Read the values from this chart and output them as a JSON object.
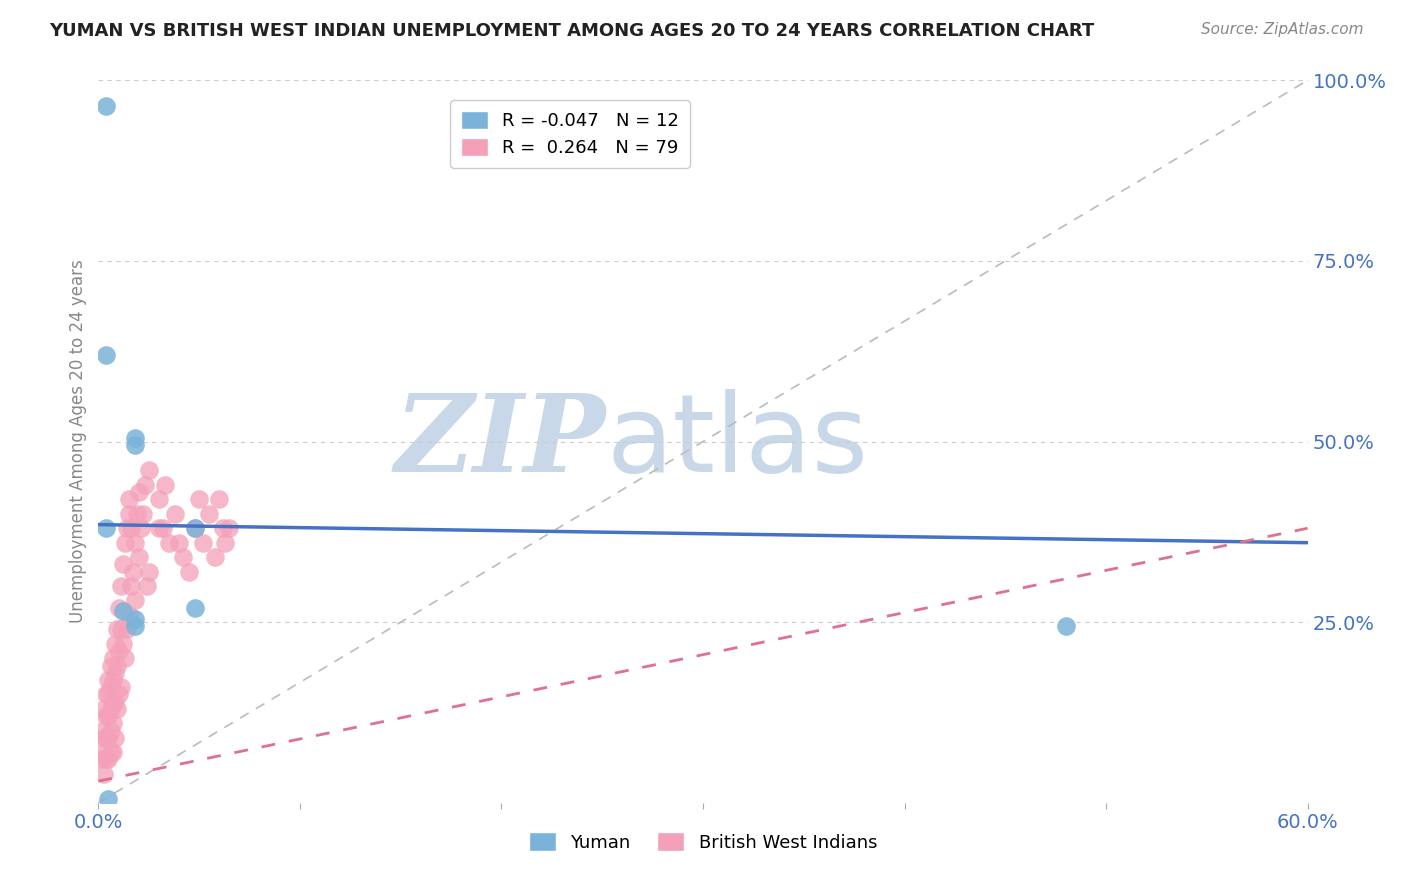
{
  "title": "YUMAN VS BRITISH WEST INDIAN UNEMPLOYMENT AMONG AGES 20 TO 24 YEARS CORRELATION CHART",
  "source": "Source: ZipAtlas.com",
  "ylabel": "Unemployment Among Ages 20 to 24 years",
  "xlim": [
    0.0,
    0.6
  ],
  "ylim": [
    0.0,
    1.0
  ],
  "xticks": [
    0.0,
    0.1,
    0.2,
    0.3,
    0.4,
    0.5,
    0.6
  ],
  "ytick_positions": [
    0.0,
    0.25,
    0.5,
    0.75,
    1.0
  ],
  "ytick_labels": [
    "",
    "25.0%",
    "50.0%",
    "75.0%",
    "100.0%"
  ],
  "legend_r_yuman": "-0.047",
  "legend_n_yuman": "12",
  "legend_r_bwi": "0.264",
  "legend_n_bwi": "79",
  "yuman_color": "#7ab3d9",
  "bwi_color": "#f4a0b8",
  "yuman_x": [
    0.004,
    0.004,
    0.004,
    0.012,
    0.018,
    0.018,
    0.018,
    0.018,
    0.048,
    0.048,
    0.48,
    0.005
  ],
  "yuman_y": [
    0.965,
    0.62,
    0.38,
    0.265,
    0.505,
    0.495,
    0.255,
    0.245,
    0.38,
    0.27,
    0.245,
    0.005
  ],
  "bwi_x": [
    0.002,
    0.002,
    0.003,
    0.003,
    0.003,
    0.003,
    0.004,
    0.004,
    0.004,
    0.004,
    0.005,
    0.005,
    0.005,
    0.005,
    0.005,
    0.006,
    0.006,
    0.006,
    0.006,
    0.006,
    0.007,
    0.007,
    0.007,
    0.007,
    0.007,
    0.008,
    0.008,
    0.008,
    0.008,
    0.009,
    0.009,
    0.009,
    0.01,
    0.01,
    0.01,
    0.011,
    0.011,
    0.011,
    0.012,
    0.012,
    0.013,
    0.013,
    0.014,
    0.014,
    0.015,
    0.015,
    0.015,
    0.016,
    0.016,
    0.017,
    0.018,
    0.018,
    0.019,
    0.02,
    0.02,
    0.021,
    0.022,
    0.023,
    0.024,
    0.025,
    0.025,
    0.03,
    0.03,
    0.032,
    0.033,
    0.035,
    0.038,
    0.04,
    0.042,
    0.045,
    0.048,
    0.05,
    0.052,
    0.055,
    0.058,
    0.06,
    0.062,
    0.063,
    0.065
  ],
  "bwi_y": [
    0.1,
    0.06,
    0.13,
    0.09,
    0.07,
    0.04,
    0.15,
    0.12,
    0.09,
    0.06,
    0.17,
    0.15,
    0.12,
    0.09,
    0.06,
    0.19,
    0.16,
    0.13,
    0.1,
    0.07,
    0.2,
    0.17,
    0.14,
    0.11,
    0.07,
    0.22,
    0.18,
    0.14,
    0.09,
    0.24,
    0.19,
    0.13,
    0.27,
    0.21,
    0.15,
    0.3,
    0.24,
    0.16,
    0.33,
    0.22,
    0.36,
    0.2,
    0.38,
    0.24,
    0.4,
    0.42,
    0.26,
    0.38,
    0.3,
    0.32,
    0.36,
    0.28,
    0.4,
    0.43,
    0.34,
    0.38,
    0.4,
    0.44,
    0.3,
    0.46,
    0.32,
    0.42,
    0.38,
    0.38,
    0.44,
    0.36,
    0.4,
    0.36,
    0.34,
    0.32,
    0.38,
    0.42,
    0.36,
    0.4,
    0.34,
    0.42,
    0.38,
    0.36,
    0.38
  ],
  "trend_yuman_start_y": 0.385,
  "trend_yuman_end_y": 0.36,
  "trend_bwi_start_y": 0.03,
  "trend_bwi_end_y": 0.38,
  "watermark_zip": "ZIP",
  "watermark_atlas": "atlas",
  "watermark_color": "#c8d8e8",
  "grid_color": "#cccccc",
  "trend_yuman_color": "#4472c4",
  "trend_bwi_color": "#e07090",
  "ref_line_color": "#bbbbbb",
  "title_fontsize": 13,
  "source_fontsize": 11,
  "tick_fontsize": 14,
  "ylabel_fontsize": 12
}
